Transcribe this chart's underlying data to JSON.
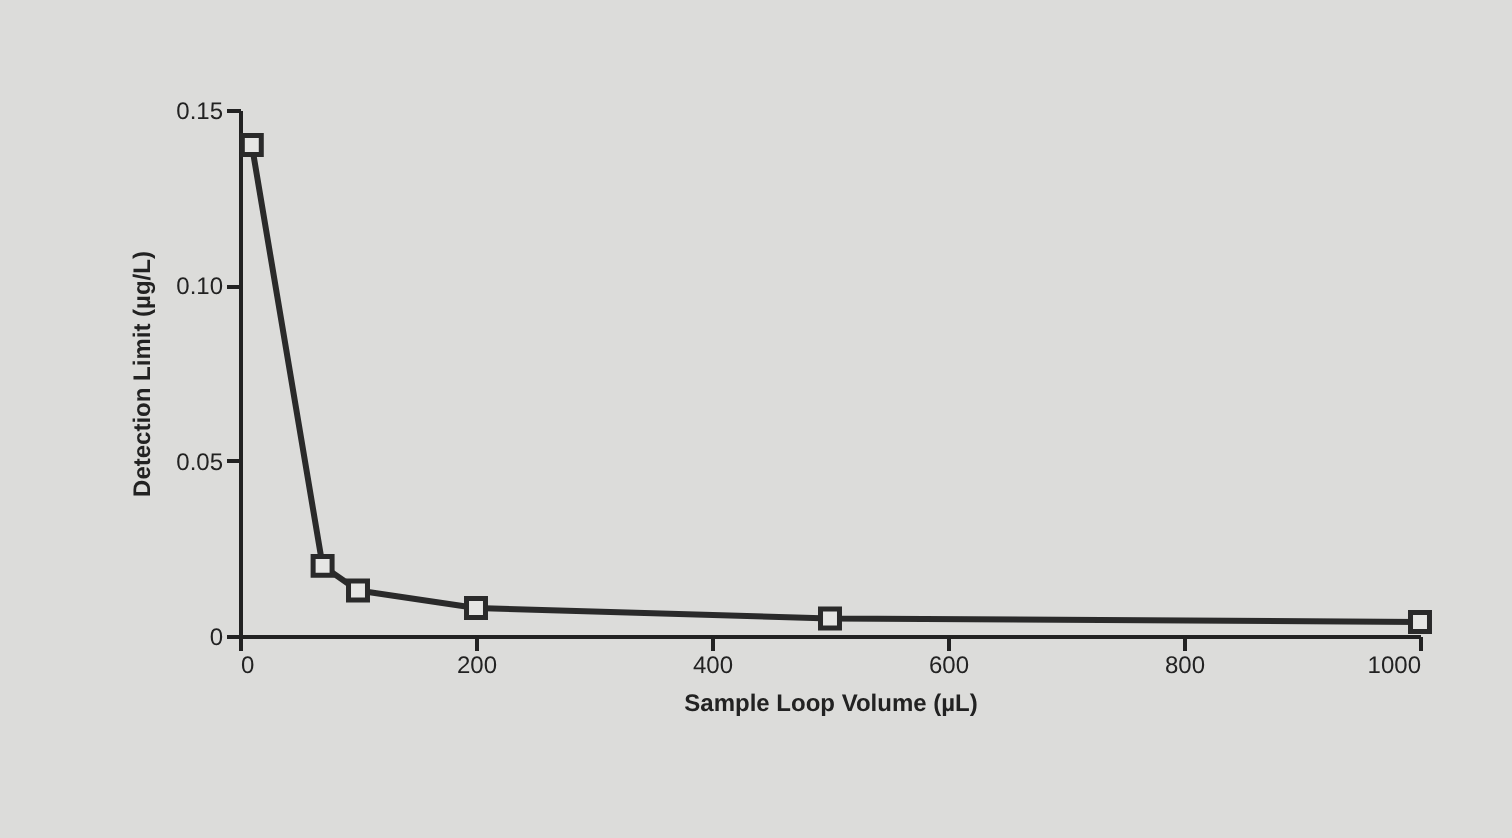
{
  "chart_data": {
    "type": "line",
    "xlabel": "Sample Loop Volume (µL)",
    "ylabel": "Detection Limit (µg/L)",
    "x": [
      10,
      70,
      100,
      200,
      500,
      1000
    ],
    "series": [
      {
        "color": "#2a2a2a",
        "values": [
          0.14,
          0.02,
          0.013,
          0.008,
          0.005,
          0.004
        ]
      }
    ],
    "xlim": [
      0,
      1000
    ],
    "xticks": [
      0,
      200,
      400,
      600,
      800,
      1000
    ],
    "ylim": [
      0,
      0.15
    ],
    "yticks": [
      0,
      0.05,
      {
        "value": 0.1,
        "label": "0.10"
      },
      0.15
    ],
    "marker": "square",
    "line_style": "solid"
  }
}
